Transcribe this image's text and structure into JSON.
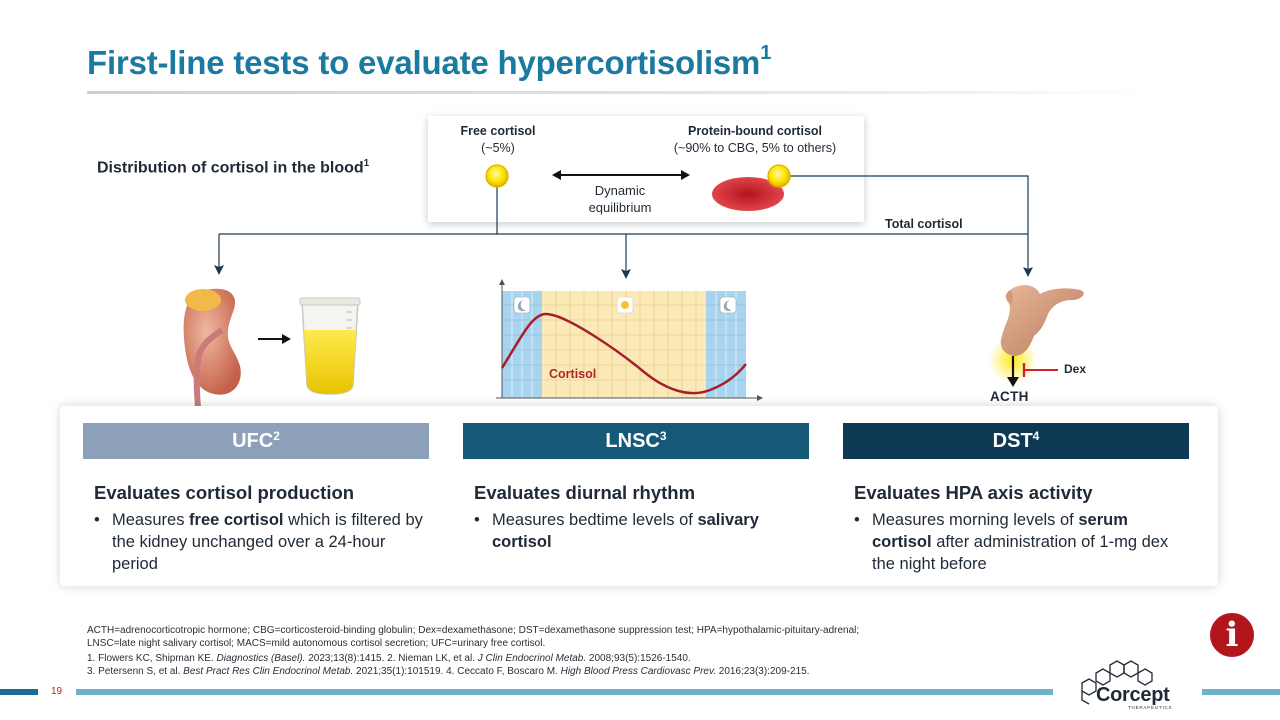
{
  "slide": {
    "title": "First-line tests to evaluate hypercortisolism",
    "title_sup": "1"
  },
  "distribution": {
    "label": "Distribution of cortisol in the blood",
    "label_sup": "1",
    "free_title": "Free cortisol",
    "free_sub": "(~5%)",
    "bound_title": "Protein-bound cortisol",
    "bound_sub": "(~90% to CBG, 5% to others)",
    "dynamic_line1": "Dynamic",
    "dynamic_line2": "equilibrium",
    "total": "Total cortisol"
  },
  "illustrations": {
    "cortisol_curve_label": "Cortisol",
    "dex_label": "Dex",
    "acth_label": "ACTH",
    "icons": [
      "kidney-icon",
      "urine-cup-icon",
      "moon-icon",
      "sun-icon",
      "pituitary-icon"
    ]
  },
  "tests": [
    {
      "name": "UFC",
      "sup": "2",
      "heading": "Evaluates cortisol production",
      "bullet_pre": "Measures ",
      "bullet_bold": "free cortisol",
      "bullet_post": " which is filtered by the kidney unchanged over a 24-hour period",
      "color": "#8da0b9"
    },
    {
      "name": "LNSC",
      "sup": "3",
      "heading": "Evaluates diurnal rhythm",
      "bullet_pre": "Measures bedtime levels of ",
      "bullet_bold": "salivary cortisol",
      "bullet_post": "",
      "color": "#165a78"
    },
    {
      "name": "DST",
      "sup": "4",
      "heading": "Evaluates HPA axis activity",
      "bullet_pre": "Measures morning levels of ",
      "bullet_bold": "serum cortisol",
      "bullet_post": " after administration of 1-mg dex the night before",
      "color": "#0d3a52"
    }
  ],
  "footnotes": {
    "abbrev_1": "ACTH=adrenocorticotropic hormone; CBG=corticosteroid-binding globulin; Dex=dexamethasone; DST=dexamethasone suppression test; HPA=hypothalamic-pituitary-adrenal;",
    "abbrev_2": "LNSC=late night salivary cortisol; MACS=mild autonomous cortisol secretion; UFC=urinary free cortisol.",
    "ref_1_pre": "1. Flowers KC, Shipman KE. ",
    "ref_1_journal": "Diagnostics (Basel).",
    "ref_1_mid": " 2023;13(8):1415. 2. Nieman LK, et al. ",
    "ref_2_journal": "J Clin Endocrinol Metab.",
    "ref_2_post": " 2008;93(5):1526-1540.",
    "ref_3_pre": "3. Petersenn S, et al. ",
    "ref_3_journal": "Best Pract Res Clin Endocrinol Metab.",
    "ref_3_mid": " 2021;35(1):101519. 4. Ceccato F, Boscaro M. ",
    "ref_4_journal": "High Blood Press Cardiovasc Prev.",
    "ref_4_post": " 2016;23(3):209-215."
  },
  "footer": {
    "page_number": "19",
    "logo_text": "Corcept",
    "logo_sub": "THERAPEUTICS",
    "info_glyph": "i"
  },
  "colors": {
    "title": "#1b7aa0",
    "accent_red": "#b0262a",
    "footer_bar": "#6fb1cb"
  }
}
